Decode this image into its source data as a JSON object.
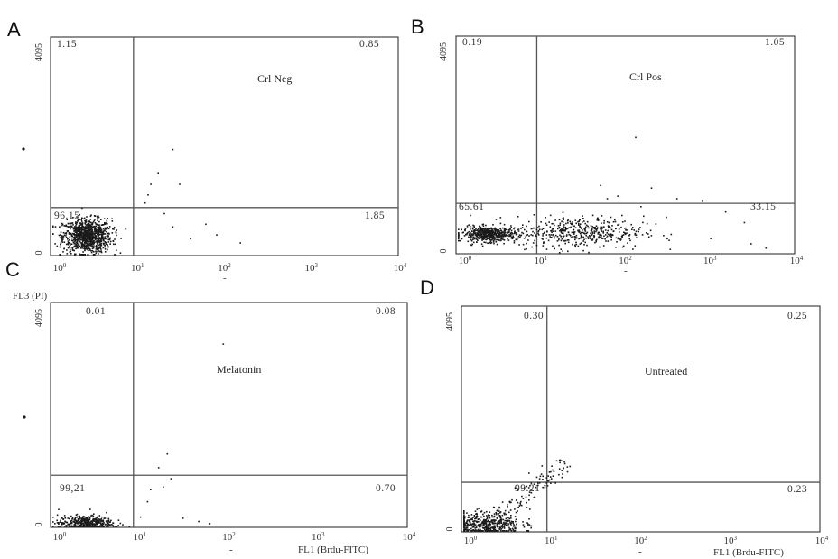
{
  "figure": {
    "shared_y_axis_label": "FL3 (PI)",
    "shared_x_axis_label": "FL1 (Brdu-FITC)"
  },
  "chart_data": [
    {
      "type": "scatter",
      "panel": "A",
      "condition": "Crl Neg",
      "quadrants": {
        "upper_left": "1.15",
        "upper_right": "0.85",
        "lower_left": "96.15",
        "lower_right": "1.85"
      },
      "x_scale": "log",
      "xlim": [
        1,
        10000
      ],
      "x_ticks": [
        "10",
        "10",
        "10",
        "10",
        "10"
      ],
      "x_tick_exponents": [
        "0",
        "1",
        "2",
        "3",
        "4"
      ],
      "y_ticks": [
        "0",
        "4095"
      ],
      "ylim": [
        0,
        4095
      ],
      "x_gate": 9,
      "y_gate": 900,
      "x_axis_label": "",
      "y_axis_label": "",
      "extra_marks": [
        "-"
      ],
      "population": {
        "x_center": 2.6,
        "x_spread": 0.14,
        "y_center": 380,
        "y_spread": 160,
        "count": 950
      },
      "scatter_points": [
        [
          14,
          1350
        ],
        [
          17,
          1550
        ],
        [
          25,
          2000
        ],
        [
          30,
          1350
        ],
        [
          12,
          1000
        ],
        [
          20,
          800
        ],
        [
          40,
          330
        ],
        [
          60,
          600
        ],
        [
          25,
          550
        ],
        [
          80,
          400
        ],
        [
          150,
          250
        ],
        [
          13,
          1150
        ]
      ],
      "grid": false,
      "legend": "none"
    },
    {
      "type": "scatter",
      "panel": "B",
      "condition": "Crl Pos",
      "quadrants": {
        "upper_left": "0.19",
        "upper_right": "1.05",
        "lower_left": "65.61",
        "lower_right": "33.15"
      },
      "x_scale": "log",
      "xlim": [
        1,
        10000
      ],
      "x_ticks": [
        "10",
        "10",
        "10",
        "10",
        "10"
      ],
      "x_tick_exponents": [
        "0",
        "1",
        "2",
        "3",
        "4"
      ],
      "y_ticks": [
        "0",
        "4095"
      ],
      "ylim": [
        0,
        4095
      ],
      "x_gate": 9,
      "y_gate": 950,
      "x_axis_label": "",
      "y_axis_label": "",
      "extra_marks": [
        "-"
      ],
      "population": {
        "x_center": 2.4,
        "x_spread": 0.16,
        "y_center": 380,
        "y_spread": 70,
        "count": 520
      },
      "population2": {
        "x_center": 28,
        "x_spread": 0.38,
        "y_center": 420,
        "y_spread": 150,
        "count": 460
      },
      "scatter_points": [
        [
          130,
          2200
        ],
        [
          50,
          1300
        ],
        [
          80,
          1100
        ],
        [
          200,
          1250
        ],
        [
          400,
          1050
        ],
        [
          800,
          1000
        ],
        [
          1500,
          800
        ],
        [
          2500,
          600
        ],
        [
          4500,
          120
        ],
        [
          300,
          700
        ],
        [
          150,
          900
        ],
        [
          1000,
          300
        ],
        [
          3000,
          200
        ],
        [
          60,
          1050
        ]
      ],
      "grid": false,
      "legend": "none"
    },
    {
      "type": "scatter",
      "panel": "C",
      "condition": "Melatonin",
      "quadrants": {
        "upper_left": "0.01",
        "upper_right": "0.08",
        "lower_left": "99,21",
        "lower_right": "0.70"
      },
      "x_scale": "log",
      "xlim": [
        1,
        10000
      ],
      "x_ticks": [
        "10",
        "10",
        "10",
        "10",
        "10"
      ],
      "x_tick_exponents": [
        "0",
        "1",
        "2",
        "3",
        "4"
      ],
      "y_ticks": [
        "0",
        "4095"
      ],
      "ylim": [
        0,
        4095
      ],
      "x_gate": 8.5,
      "y_gate": 950,
      "x_axis_label": "FL1 (Brdu-FITC)",
      "y_axis_label": "",
      "extra_marks": [
        "-"
      ],
      "population": {
        "x_center": 2.4,
        "x_spread": 0.15,
        "y_center": 90,
        "y_spread": 70,
        "count": 420
      },
      "scatter_points": [
        [
          85,
          3350
        ],
        [
          20,
          1350
        ],
        [
          13,
          700
        ],
        [
          18,
          750
        ],
        [
          22,
          900
        ],
        [
          12,
          480
        ],
        [
          30,
          180
        ],
        [
          45,
          120
        ],
        [
          10,
          200
        ],
        [
          16,
          1100
        ],
        [
          60,
          80
        ]
      ],
      "grid": false,
      "legend": "none"
    },
    {
      "type": "scatter",
      "panel": "D",
      "condition": "Untreated",
      "quadrants": {
        "upper_left": "0.30",
        "upper_right": "0.25",
        "lower_left": "99.21",
        "lower_right": "0.23"
      },
      "x_scale": "log",
      "xlim": [
        1,
        10000
      ],
      "x_ticks": [
        "10",
        "10",
        "10",
        "10",
        "10"
      ],
      "x_tick_exponents": [
        "0",
        "1",
        "2",
        "3",
        "4"
      ],
      "y_ticks": [
        "0",
        "4095"
      ],
      "ylim": [
        0,
        4095
      ],
      "x_gate": 9,
      "y_gate": 900,
      "x_axis_label": "FL1 (Brdu-FITC)",
      "y_axis_label": "",
      "extra_marks": [
        "-"
      ],
      "population": {
        "x_center": 1.8,
        "x_spread": 0.2,
        "y_center": 150,
        "y_spread": 110,
        "count": 480
      },
      "diagonal": {
        "x_from": 2.2,
        "x_to": 14,
        "y_from": 200,
        "y_to": 1300,
        "count": 110
      },
      "scatter_points": [
        [
          15,
          1100
        ],
        [
          14,
          1250
        ],
        [
          16,
          1200
        ],
        [
          12,
          1050
        ],
        [
          11,
          900
        ],
        [
          9,
          850
        ],
        [
          13,
          1000
        ]
      ],
      "grid": false,
      "legend": "none"
    }
  ],
  "colors": {
    "dots": "#1a1a1a",
    "gates": "#555555",
    "frame": "#333333"
  }
}
